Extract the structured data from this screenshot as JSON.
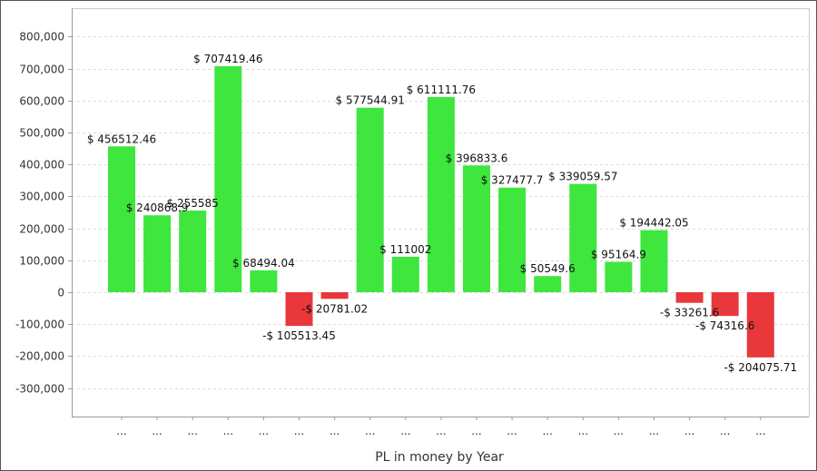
{
  "chart_data": {
    "type": "bar",
    "title": "",
    "xlabel": "PL in money by Year",
    "ylabel": "",
    "ylim": [
      -350000,
      850000
    ],
    "yticks": [
      -300000,
      -200000,
      -100000,
      0,
      100000,
      200000,
      300000,
      400000,
      500000,
      600000,
      700000,
      800000
    ],
    "ytick_labels": [
      "-300,000",
      "-200,000",
      "-100,000",
      "0",
      "100,000",
      "200,000",
      "300,000",
      "400,000",
      "500,000",
      "600,000",
      "700,000",
      "800,000"
    ],
    "grid": true,
    "categories": [
      "...",
      "...",
      "...",
      "...",
      "...",
      "...",
      "...",
      "...",
      "...",
      "...",
      "...",
      "...",
      "...",
      "...",
      "...",
      "...",
      "...",
      "...",
      "..."
    ],
    "values": [
      456512.46,
      240868.9,
      255585,
      707419.46,
      68494.04,
      -105513.45,
      -20781.02,
      577544.91,
      111002,
      611111.76,
      396833.6,
      327477.7,
      50549.6,
      339059.57,
      95164.9,
      194442.05,
      -33261.6,
      -74316.6,
      -204075.71
    ],
    "data_labels": [
      "$ 456512.46",
      "$ 240868.9",
      "$ 255585",
      "$ 707419.46",
      "$ 68494.04",
      "-$ 105513.45",
      "-$ 20781.02",
      "$ 577544.91",
      "$ 111002",
      "$ 611111.76",
      "$ 396833.6",
      "$ 327477.7",
      "$ 50549.6",
      "$ 339059.57",
      "$ 95164.9",
      "$ 194442.05",
      "-$ 33261.6",
      "-$ 74316.6",
      "-$ 204075.71"
    ],
    "colors": {
      "positive": "#3ee63e",
      "negative": "#e8383c",
      "grid": "#dddddd",
      "axis": "#999999"
    }
  }
}
